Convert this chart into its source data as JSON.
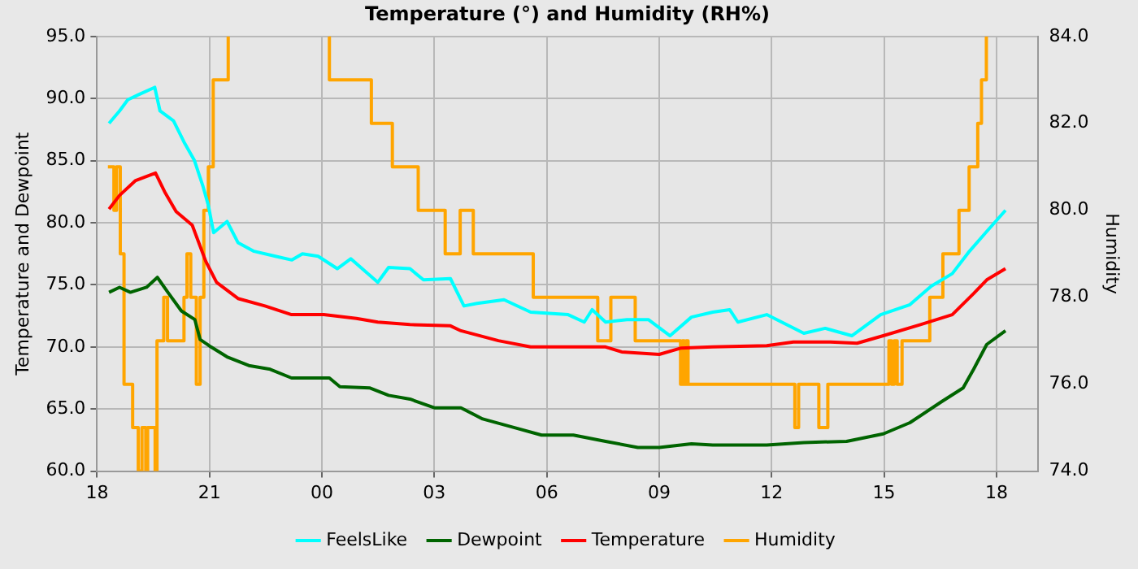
{
  "chart_data": {
    "type": "line",
    "title": "Temperature (°) and Humidity (RH%)",
    "ylabel": "Temperature and Dewpoint",
    "y2label": "Humidity",
    "xlim": [
      18,
      43.1
    ],
    "xticks": [
      {
        "value": 18,
        "label": "18"
      },
      {
        "value": 21,
        "label": "21"
      },
      {
        "value": 24,
        "label": "00"
      },
      {
        "value": 27,
        "label": "03"
      },
      {
        "value": 30,
        "label": "06"
      },
      {
        "value": 33,
        "label": "09"
      },
      {
        "value": 36,
        "label": "12"
      },
      {
        "value": 39,
        "label": "15"
      },
      {
        "value": 42,
        "label": "18"
      }
    ],
    "ylim": [
      60,
      95
    ],
    "yticks": [
      {
        "value": 60,
        "label": "60.0"
      },
      {
        "value": 65,
        "label": "65.0"
      },
      {
        "value": 70,
        "label": "70.0"
      },
      {
        "value": 75,
        "label": "75.0"
      },
      {
        "value": 80,
        "label": "80.0"
      },
      {
        "value": 85,
        "label": "85.0"
      },
      {
        "value": 90,
        "label": "90.0"
      },
      {
        "value": 95,
        "label": "95.0"
      }
    ],
    "y2lim": [
      74,
      84
    ],
    "y2ticks": [
      {
        "value": 74,
        "label": "74.0"
      },
      {
        "value": 76,
        "label": "76.0"
      },
      {
        "value": 78,
        "label": "78.0"
      },
      {
        "value": 80,
        "label": "80.0"
      },
      {
        "value": 82,
        "label": "82.0"
      },
      {
        "value": 84,
        "label": "84.0"
      }
    ],
    "grid": true,
    "legend": "bottom",
    "marker": "none",
    "line_style": "solid",
    "series": [
      {
        "name": "FeelsLike",
        "color": "#00ffff",
        "x": [
          18.32,
          18.6,
          18.82,
          19.1,
          19.54,
          19.68,
          20.04,
          20.32,
          20.6,
          20.83,
          20.97,
          21.11,
          21.47,
          21.76,
          22.19,
          22.76,
          23.2,
          23.48,
          23.9,
          24.41,
          24.77,
          25.49,
          25.78,
          26.35,
          26.71,
          27.43,
          27.79,
          28.14,
          28.86,
          29.57,
          30.57,
          31.0,
          31.21,
          31.57,
          32.14,
          32.71,
          33.29,
          33.86,
          34.43,
          34.88,
          35.1,
          35.87,
          36.86,
          37.43,
          38.14,
          38.91,
          39.69,
          40.26,
          40.82,
          41.25,
          41.74,
          42.24
        ],
        "values": [
          88.0,
          89.0,
          89.9,
          90.3,
          90.9,
          89.0,
          88.2,
          86.5,
          85.0,
          82.9,
          81.4,
          79.2,
          80.1,
          78.4,
          77.7,
          77.3,
          77.0,
          77.5,
          77.3,
          76.3,
          77.1,
          75.2,
          76.4,
          76.3,
          75.4,
          75.5,
          73.3,
          73.5,
          73.8,
          72.8,
          72.6,
          72.0,
          73.0,
          72.0,
          72.2,
          72.2,
          70.9,
          72.4,
          72.8,
          73.0,
          72.0,
          72.6,
          71.1,
          71.5,
          70.9,
          72.6,
          73.4,
          74.9,
          75.9,
          77.6,
          79.3,
          81.0
        ]
      },
      {
        "name": "Dewpoint",
        "color": "#006400",
        "x": [
          18.32,
          18.6,
          18.89,
          19.32,
          19.61,
          19.89,
          20.25,
          20.61,
          20.75,
          21.04,
          21.47,
          22.05,
          22.62,
          23.19,
          23.77,
          24.2,
          24.48,
          25.27,
          25.78,
          26.35,
          27.0,
          27.71,
          28.29,
          29.14,
          29.86,
          30.71,
          31.57,
          32.43,
          33.0,
          33.86,
          34.43,
          35.87,
          36.86,
          38.0,
          38.98,
          39.69,
          40.54,
          41.11,
          41.39,
          41.74,
          42.24
        ],
        "values": [
          74.4,
          74.8,
          74.4,
          74.8,
          75.6,
          74.4,
          72.9,
          72.2,
          70.6,
          70.0,
          69.2,
          68.5,
          68.2,
          67.5,
          67.5,
          67.5,
          66.8,
          66.7,
          66.1,
          65.8,
          65.1,
          65.1,
          64.2,
          63.5,
          62.9,
          62.9,
          62.4,
          61.9,
          61.9,
          62.2,
          62.1,
          62.1,
          62.3,
          62.4,
          63.0,
          63.9,
          65.6,
          66.7,
          68.2,
          70.2,
          71.3
        ]
      },
      {
        "name": "Temperature",
        "color": "#ff0000",
        "x": [
          18.32,
          18.6,
          19.03,
          19.56,
          19.82,
          20.11,
          20.54,
          20.9,
          21.19,
          21.76,
          22.48,
          23.19,
          24.05,
          24.92,
          25.49,
          26.35,
          27.43,
          27.71,
          28.71,
          29.57,
          31.57,
          32.0,
          33.0,
          33.57,
          34.43,
          35.87,
          36.58,
          37.57,
          38.28,
          38.98,
          39.97,
          40.82,
          41.39,
          41.74,
          42.24
        ],
        "values": [
          81.1,
          82.2,
          83.4,
          84.0,
          82.4,
          80.9,
          79.8,
          76.9,
          75.2,
          73.9,
          73.3,
          72.6,
          72.6,
          72.3,
          72.0,
          71.8,
          71.7,
          71.3,
          70.5,
          70.0,
          70.0,
          69.6,
          69.4,
          69.9,
          70.0,
          70.1,
          70.4,
          70.4,
          70.3,
          70.9,
          71.8,
          72.6,
          74.3,
          75.4,
          76.3
        ]
      },
      {
        "name": "Humidity",
        "color": "#ffa500",
        "type": "step",
        "axis": "y2",
        "x": [
          18.29,
          18.45,
          18.52,
          18.62,
          18.72,
          18.95,
          19.1,
          19.2,
          19.3,
          19.35,
          19.55,
          19.6,
          19.78,
          19.88,
          20.32,
          20.4,
          20.5,
          20.65,
          20.75,
          20.85,
          20.97,
          21.1,
          21.5,
          21.6,
          24.19,
          24.2,
          25.32,
          25.88,
          26.57,
          27.29,
          27.69,
          28.04,
          29.64,
          31.36,
          31.71,
          32.36,
          33.57,
          33.62,
          33.67,
          33.72,
          33.77,
          36.62,
          36.72,
          37.26,
          37.5,
          39.13,
          39.2,
          39.27,
          39.35,
          39.48,
          40.22,
          40.57,
          41.0,
          41.27,
          41.5,
          41.6,
          41.73
        ],
        "values": [
          81,
          80,
          81,
          79,
          76,
          75,
          74,
          75,
          74,
          75,
          74,
          77,
          78,
          77,
          78,
          79,
          78,
          76,
          78,
          80,
          81,
          83,
          84,
          null,
          84,
          83,
          82,
          81,
          80,
          79,
          80,
          79,
          78,
          77,
          78,
          77,
          76,
          77,
          76,
          77,
          76,
          75,
          76,
          75,
          76,
          77,
          76,
          77,
          76,
          77,
          78,
          79,
          80,
          81,
          82,
          83,
          84
        ]
      }
    ]
  }
}
